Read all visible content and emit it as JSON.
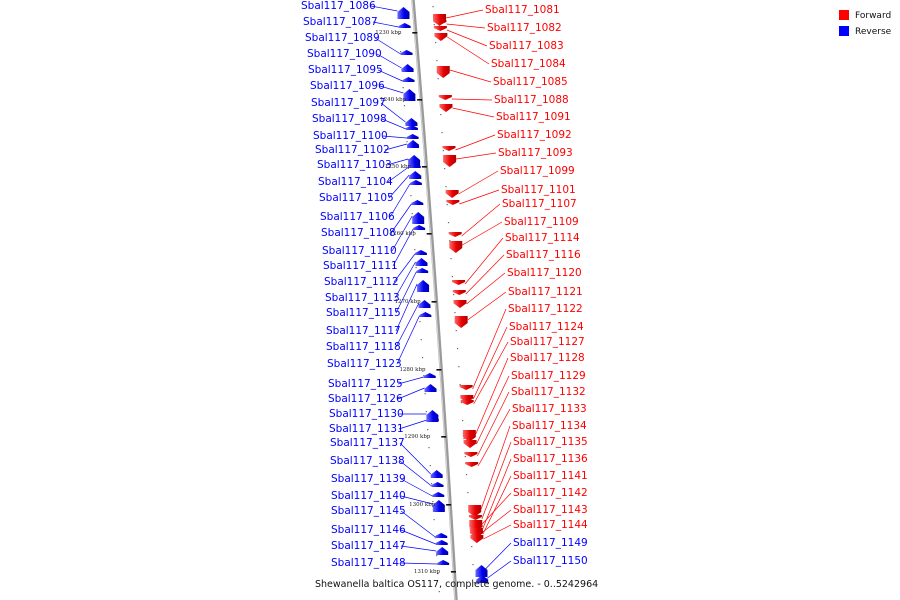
{
  "caption": "Shewanella baltica OS117, complete genome. - 0..5242964",
  "legend": [
    {
      "label": "Forward",
      "color": "#ff0000"
    },
    {
      "label": "Reverse",
      "color": "#0000ff"
    }
  ],
  "kbp_marks": [
    "1230 kbp",
    "1240 kbp",
    "1250 kbp",
    "1260 kbp",
    "1270 kbp",
    "1280 kbp",
    "1290 kbp",
    "1300 kbp",
    "1310 kbp"
  ],
  "reverse_genes": [
    "Sbal117_1086",
    "Sbal117_1087",
    "Sbal117_1089",
    "Sbal117_1090",
    "Sbal117_1095",
    "Sbal117_1096",
    "Sbal117_1097",
    "Sbal117_1098",
    "Sbal117_1100",
    "Sbal117_1102",
    "Sbal117_1103",
    "Sbal117_1104",
    "Sbal117_1105",
    "Sbal117_1106",
    "Sbal117_1108",
    "Sbal117_1110",
    "Sbal117_1111",
    "Sbal117_1112",
    "Sbal117_1113",
    "Sbal117_1115",
    "Sbal117_1117",
    "Sbal117_1118",
    "Sbal117_1123",
    "Sbal117_1125",
    "Sbal117_1126",
    "Sbal117_1130",
    "Sbal117_1131",
    "Sbal117_1137",
    "Sbal117_1138",
    "Sbal117_1139",
    "Sbal117_1140",
    "Sbal117_1145",
    "Sbal117_1146",
    "Sbal117_1147",
    "Sbal117_1148",
    "Sbal117_1149",
    "Sbal117_1150"
  ],
  "forward_genes": [
    "Sbal117_1081",
    "Sbal117_1082",
    "Sbal117_1083",
    "Sbal117_1084",
    "Sbal117_1085",
    "Sbal117_1088",
    "Sbal117_1091",
    "Sbal117_1092",
    "Sbal117_1093",
    "Sbal117_1099",
    "Sbal117_1101",
    "Sbal117_1107",
    "Sbal117_1109",
    "Sbal117_1114",
    "Sbal117_1116",
    "Sbal117_1120",
    "Sbal117_1121",
    "Sbal117_1122",
    "Sbal117_1124",
    "Sbal117_1127",
    "Sbal117_1128",
    "Sbal117_1129",
    "Sbal117_1132",
    "Sbal117_1133",
    "Sbal117_1134",
    "Sbal117_1135",
    "Sbal117_1136",
    "Sbal117_1141",
    "Sbal117_1142",
    "Sbal117_1143",
    "Sbal117_1144"
  ]
}
